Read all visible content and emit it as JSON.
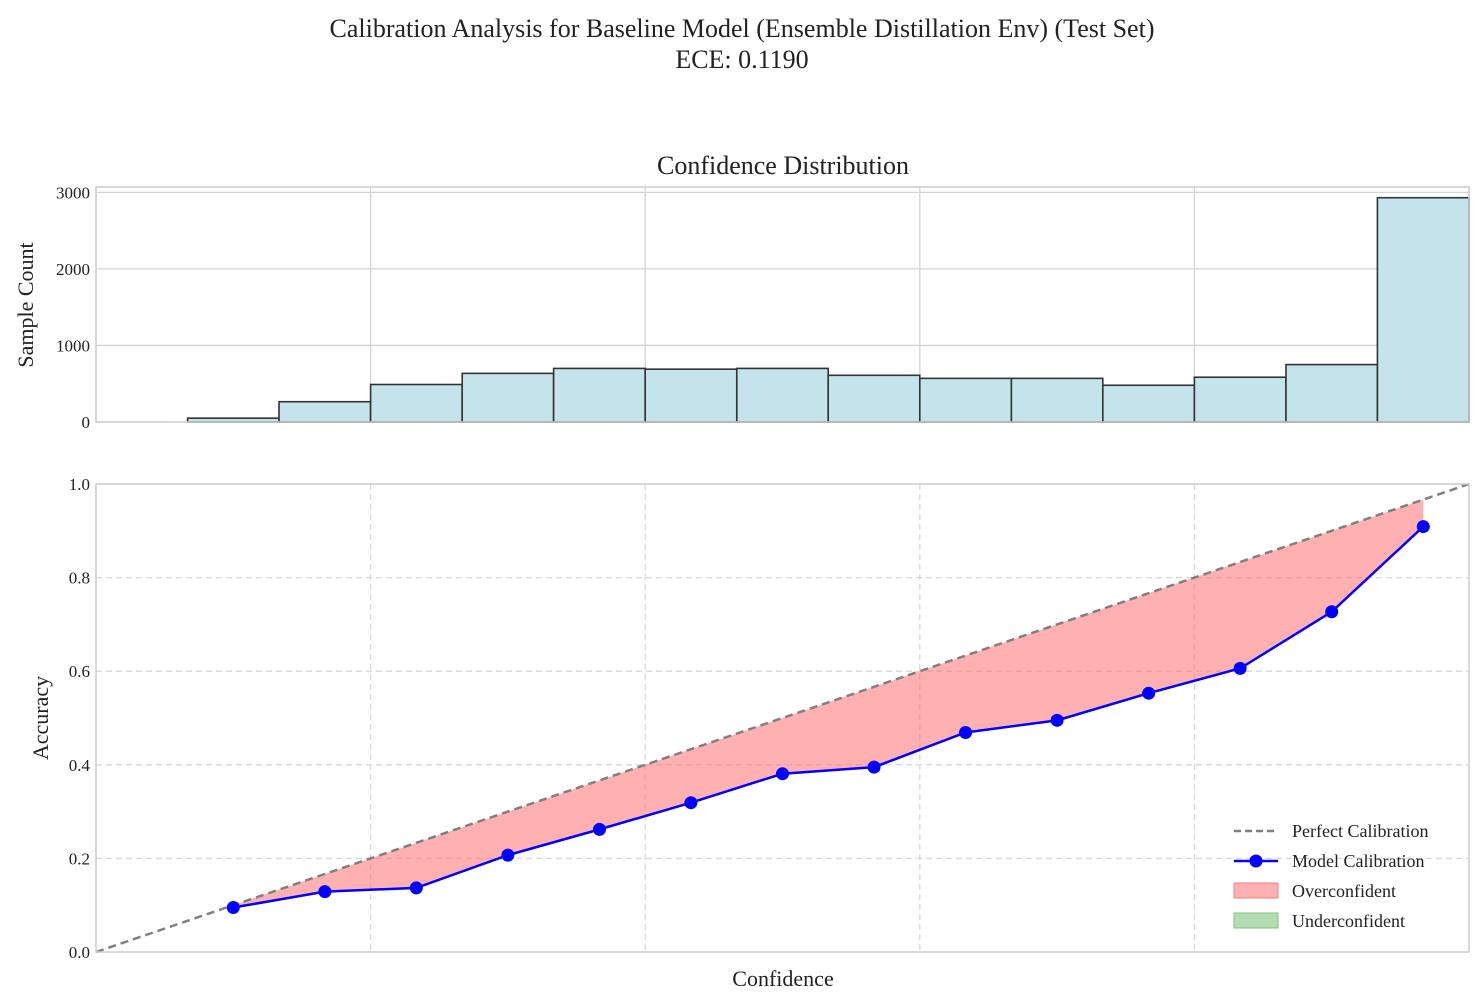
{
  "figure": {
    "title_line1": "Calibration Analysis for Baseline Model (Ensemble Distillation Env) (Test Set)",
    "title_line2": "ECE: 0.1190"
  },
  "chart_data": [
    {
      "type": "bar",
      "title": "Confidence Distribution",
      "xlabel": "",
      "ylabel": "Sample Count",
      "xlim": [
        0,
        1
      ],
      "ylim": [
        0,
        3070
      ],
      "yticks": [
        0,
        1000,
        2000,
        3000
      ],
      "grid": true,
      "bin_edges": [
        0.0,
        0.0667,
        0.1333,
        0.2,
        0.2667,
        0.3333,
        0.4,
        0.4667,
        0.5333,
        0.6,
        0.6667,
        0.7333,
        0.8,
        0.8667,
        0.9333,
        1.0
      ],
      "values": [
        0,
        50,
        265,
        490,
        635,
        700,
        690,
        700,
        610,
        570,
        570,
        480,
        585,
        750,
        2930
      ],
      "color": "#c5e3ea",
      "edgecolor": "#333333"
    },
    {
      "type": "line",
      "title": "",
      "xlabel": "Confidence",
      "ylabel": "Accuracy",
      "xlim": [
        0,
        1
      ],
      "ylim": [
        0,
        1
      ],
      "yticks": [
        0.0,
        0.2,
        0.4,
        0.6,
        0.8,
        1.0
      ],
      "yticklabels": [
        "0.0",
        "0.2",
        "0.4",
        "0.6",
        "0.8",
        "1.0"
      ],
      "grid": "dashed",
      "legend_position": "lower right",
      "series": [
        {
          "name": "Perfect Calibration",
          "style": "dashed",
          "color": "#808080",
          "x": [
            0,
            1
          ],
          "y": [
            0,
            1
          ]
        },
        {
          "name": "Model Calibration",
          "style": "line-marker",
          "color": "#0000ff",
          "x": [
            0.1,
            0.1667,
            0.2333,
            0.3,
            0.3667,
            0.4333,
            0.5,
            0.5667,
            0.6333,
            0.7,
            0.7667,
            0.8333,
            0.9,
            0.9667
          ],
          "y": [
            0.095,
            0.129,
            0.137,
            0.207,
            0.262,
            0.319,
            0.381,
            0.395,
            0.469,
            0.495,
            0.553,
            0.606,
            0.727,
            0.909
          ]
        }
      ],
      "fills": [
        {
          "name": "Overconfident",
          "color": "#ff6f6f",
          "alpha": 0.55
        },
        {
          "name": "Underconfident",
          "color": "#5cb85c",
          "alpha": 0.45
        }
      ]
    }
  ]
}
